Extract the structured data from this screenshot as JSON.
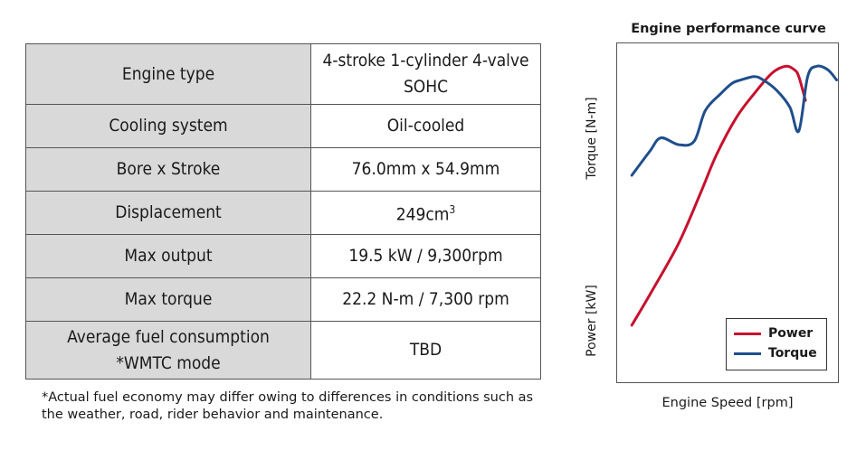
{
  "specs": [
    {
      "label": "Engine type",
      "value": "4-stroke 1-cylinder 4-valve SOHC"
    },
    {
      "label": "Cooling system",
      "value": "Oil-cooled"
    },
    {
      "label": "Bore x Stroke",
      "value": "76.0mm x 54.9mm"
    },
    {
      "label": "Displacement",
      "value": "249cm",
      "value_sup": "3"
    },
    {
      "label": "Max output",
      "value": "19.5 kW / 9,300rpm"
    },
    {
      "label": "Max torque",
      "value": "22.2 N-m / 7,300 rpm"
    },
    {
      "label": "Average fuel consumption *WMTC mode",
      "value": "TBD"
    }
  ],
  "footnote": "*Actual fuel economy may differ owing to differences in conditions such as the weather, road, rider behavior and maintenance.",
  "chart_data": {
    "type": "line",
    "title": "Engine performance curve",
    "xlabel": "Engine Speed [rpm]",
    "ylabel_top": "Torque [N-m]",
    "ylabel_bottom": "Power [kW]",
    "axis_ticks": "none",
    "x_range": [
      0,
      1
    ],
    "y_range": [
      0,
      1
    ],
    "legend_position": "bottom-right",
    "series": [
      {
        "name": "Power",
        "color": "#c8102e",
        "x": [
          0.07,
          0.16,
          0.28,
          0.38,
          0.45,
          0.54,
          0.62,
          0.7,
          0.76,
          0.8,
          0.82,
          0.85
        ],
        "y": [
          0.17,
          0.27,
          0.41,
          0.56,
          0.67,
          0.78,
          0.85,
          0.91,
          0.93,
          0.92,
          0.9,
          0.83
        ]
      },
      {
        "name": "Torque",
        "color": "#1f4e8c",
        "x": [
          0.07,
          0.15,
          0.2,
          0.28,
          0.35,
          0.4,
          0.47,
          0.52,
          0.56,
          0.62,
          0.66,
          0.72,
          0.78,
          0.82,
          0.86,
          0.9,
          0.95,
          0.99
        ],
        "y": [
          0.61,
          0.68,
          0.72,
          0.7,
          0.71,
          0.8,
          0.85,
          0.88,
          0.89,
          0.9,
          0.89,
          0.86,
          0.81,
          0.74,
          0.9,
          0.93,
          0.92,
          0.89
        ]
      }
    ]
  }
}
